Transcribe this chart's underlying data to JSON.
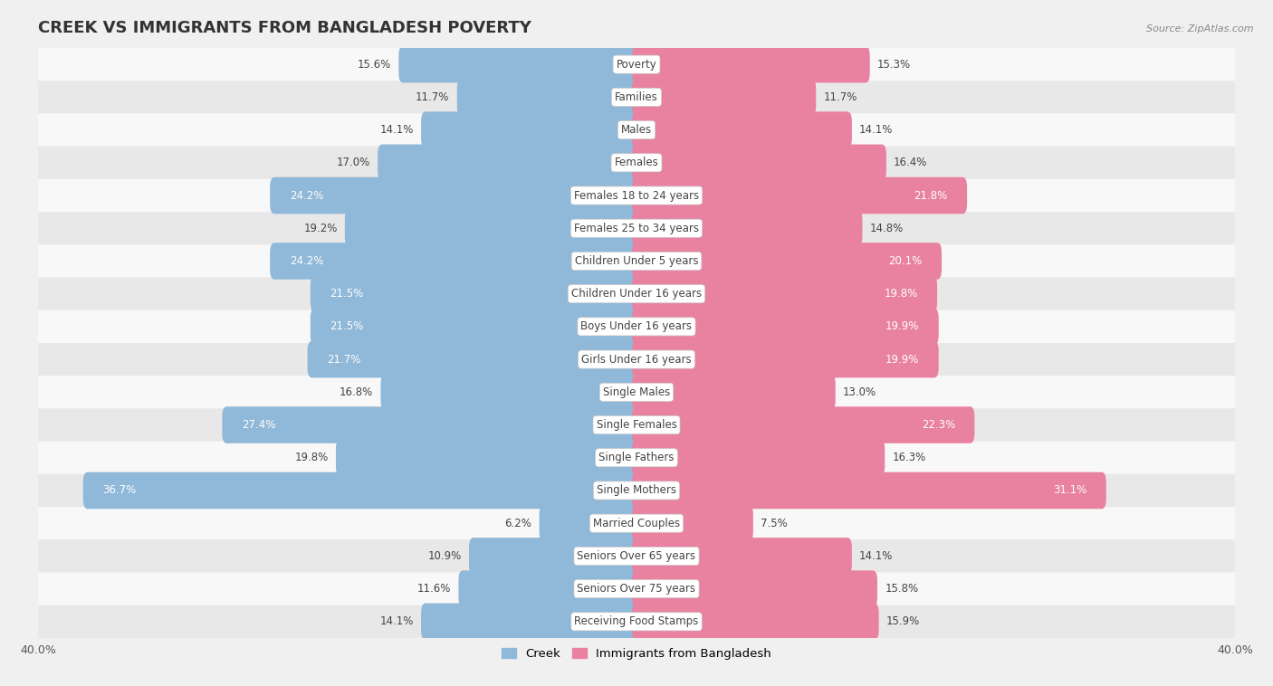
{
  "title": "CREEK VS IMMIGRANTS FROM BANGLADESH POVERTY",
  "source": "Source: ZipAtlas.com",
  "categories": [
    "Poverty",
    "Families",
    "Males",
    "Females",
    "Females 18 to 24 years",
    "Females 25 to 34 years",
    "Children Under 5 years",
    "Children Under 16 years",
    "Boys Under 16 years",
    "Girls Under 16 years",
    "Single Males",
    "Single Females",
    "Single Fathers",
    "Single Mothers",
    "Married Couples",
    "Seniors Over 65 years",
    "Seniors Over 75 years",
    "Receiving Food Stamps"
  ],
  "creek_values": [
    15.6,
    11.7,
    14.1,
    17.0,
    24.2,
    19.2,
    24.2,
    21.5,
    21.5,
    21.7,
    16.8,
    27.4,
    19.8,
    36.7,
    6.2,
    10.9,
    11.6,
    14.1
  ],
  "bangladesh_values": [
    15.3,
    11.7,
    14.1,
    16.4,
    21.8,
    14.8,
    20.1,
    19.8,
    19.9,
    19.9,
    13.0,
    22.3,
    16.3,
    31.1,
    7.5,
    14.1,
    15.8,
    15.9
  ],
  "creek_color": "#90b8d8",
  "bangladesh_color": "#e882a0",
  "creek_label": "Creek",
  "bangladesh_label": "Immigrants from Bangladesh",
  "axis_limit": 40.0,
  "background_color": "#f0f0f0",
  "row_light": "#f8f8f8",
  "row_dark": "#e8e8e8",
  "title_fontsize": 13,
  "label_fontsize": 8.5,
  "value_fontsize": 8.5,
  "bar_height": 0.52,
  "inside_label_threshold_creek": 20.0,
  "inside_label_threshold_bang": 18.0
}
